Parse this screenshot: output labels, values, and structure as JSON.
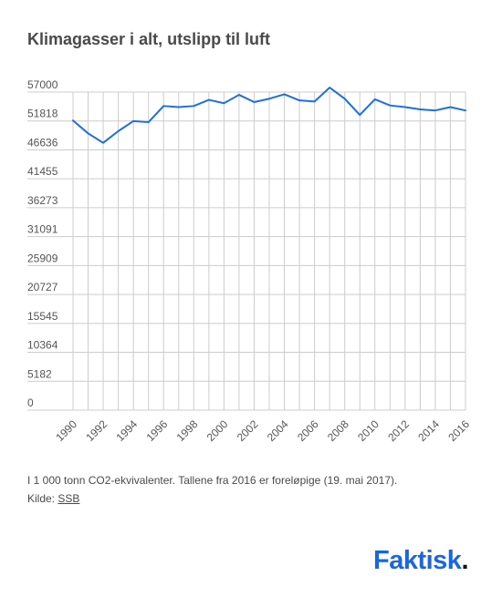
{
  "title": "Klimagasser i alt, utslipp til luft",
  "note": "I 1 000 tonn CO2-ekvivalenter. Tallene fra 2016 er foreløpige (19. mai 2017).",
  "source_prefix": "Kilde: ",
  "source_link": "SSB",
  "brand": {
    "name": "Faktisk",
    "dot": "."
  },
  "colors": {
    "line": "#1f6fe0",
    "grid": "#cccccc",
    "brand": "#1a66e0"
  },
  "chart_data": {
    "type": "line",
    "title": "Klimagasser i alt, utslipp til luft",
    "xlabel": "",
    "ylabel": "",
    "grid": true,
    "ylim": [
      0,
      57000
    ],
    "yticks": [
      0,
      5182,
      10364,
      15545,
      20727,
      25909,
      31091,
      36273,
      41455,
      46636,
      51818,
      57000
    ],
    "xticks": [
      1990,
      1992,
      1994,
      1996,
      1998,
      2000,
      2002,
      2004,
      2006,
      2008,
      2010,
      2012,
      2014,
      2016
    ],
    "x": [
      1990,
      1991,
      1992,
      1993,
      1994,
      1995,
      1996,
      1997,
      1998,
      1999,
      2000,
      2001,
      2002,
      2003,
      2004,
      2005,
      2006,
      2007,
      2008,
      2009,
      2010,
      2011,
      2012,
      2013,
      2014,
      2015,
      2016
    ],
    "series": [
      {
        "values": [
          51900,
          49600,
          47900,
          50000,
          51800,
          51600,
          54500,
          54300,
          54500,
          55600,
          55000,
          56500,
          55200,
          55800,
          56600,
          55500,
          55300,
          57800,
          55800,
          52900,
          55700,
          54600,
          54300,
          53900,
          53700,
          54300,
          53700
        ]
      }
    ]
  }
}
